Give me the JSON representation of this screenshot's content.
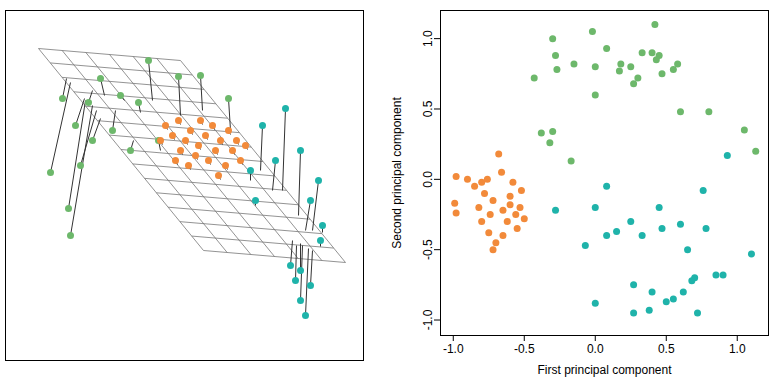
{
  "chart_data": [
    {
      "type": "scatter",
      "tick_labels": false,
      "xlim": [
        5,
        363
      ],
      "ylim": [
        10,
        360
      ],
      "plane": [
        [
          38,
          48
        ],
        [
          180,
          60
        ],
        [
          345,
          262
        ],
        [
          203,
          250
        ]
      ],
      "series": [
        {
          "color": "#6db86b",
          "x": [
            148,
            178,
            100,
            62,
            88,
            50,
            68,
            70,
            112,
            130,
            138,
            158,
            200,
            228,
            92,
            120,
            80,
            75
          ],
          "y": [
            60,
            76,
            78,
            98,
            102,
            172,
            208,
            235,
            130,
            150,
            102,
            140,
            75,
            98,
            140,
            95,
            165,
            125
          ],
          "proj_x": [
            152,
            180,
            104,
            66,
            92,
            70,
            85,
            92,
            115,
            133,
            140,
            160,
            202,
            230,
            100,
            124,
            96,
            84
          ],
          "proj_y": [
            100,
            115,
            95,
            78,
            90,
            82,
            100,
            105,
            110,
            140,
            112,
            150,
            110,
            130,
            118,
            100,
            110,
            98
          ]
        },
        {
          "color": "#f28a3a",
          "x": [
            165,
            172,
            178,
            180,
            185,
            190,
            195,
            198,
            205,
            208,
            212,
            215,
            220,
            225,
            228,
            232,
            236,
            240,
            188,
            175,
            245,
            200,
            218,
            160
          ],
          "y": [
            125,
            135,
            120,
            150,
            140,
            130,
            155,
            145,
            135,
            160,
            125,
            150,
            140,
            165,
            130,
            150,
            140,
            160,
            165,
            160,
            145,
            120,
            175,
            140
          ],
          "proj_x": [
            167,
            174,
            180,
            182,
            187,
            192,
            197,
            200,
            207,
            210,
            214,
            217,
            222,
            227,
            230,
            234,
            238,
            242,
            190,
            177,
            247,
            202,
            220,
            162
          ],
          "proj_y": [
            129,
            139,
            124,
            154,
            144,
            134,
            159,
            149,
            139,
            164,
            129,
            154,
            144,
            169,
            134,
            154,
            144,
            164,
            169,
            164,
            149,
            124,
            179,
            144
          ]
        },
        {
          "color": "#1fb3aa",
          "x": [
            285,
            318,
            262,
            275,
            300,
            250,
            310,
            255,
            300,
            305,
            320,
            295,
            290,
            322,
            300,
            310
          ],
          "y": [
            108,
            180,
            125,
            160,
            150,
            170,
            200,
            200,
            300,
            315,
            240,
            280,
            265,
            225,
            270,
            285
          ],
          "proj_x": [
            282,
            312,
            260,
            272,
            298,
            250,
            305,
            255,
            302,
            308,
            320,
            296,
            292,
            322,
            300,
            312
          ],
          "proj_y": [
            190,
            230,
            170,
            190,
            215,
            180,
            230,
            205,
            245,
            248,
            246,
            245,
            240,
            232,
            243,
            250
          ]
        }
      ]
    },
    {
      "type": "scatter",
      "x_label": "First principal component",
      "y_label": "Second principal component",
      "xlim": [
        -1.09,
        1.22
      ],
      "ylim": [
        -1.11,
        1.2
      ],
      "xticks": [
        {
          "value": -1,
          "label": "-1.0"
        },
        {
          "value": -0.5,
          "label": "-0.5"
        },
        {
          "value": 0,
          "label": "0.0"
        },
        {
          "value": 0.5,
          "label": "0.5"
        },
        {
          "value": 1,
          "label": "1.0"
        }
      ],
      "yticks": [
        {
          "value": -1,
          "label": "-1.0"
        },
        {
          "value": -0.5,
          "label": "-0.5"
        },
        {
          "value": 0,
          "label": "0.0"
        },
        {
          "value": 0.5,
          "label": "0.5"
        },
        {
          "value": 1,
          "label": "1.0"
        }
      ],
      "series": [
        {
          "color": "#f28a3a",
          "x": [
            -0.98,
            -0.99,
            -0.98,
            -0.9,
            -0.85,
            -0.82,
            -0.8,
            -0.78,
            -0.75,
            -0.74,
            -0.72,
            -0.7,
            -0.72,
            -0.68,
            -0.66,
            -0.65,
            -0.62,
            -0.6,
            -0.58,
            -0.56,
            -0.55,
            -0.53,
            -0.52,
            -0.5,
            -0.65,
            -0.8,
            -0.76,
            -0.6
          ],
          "y": [
            0.02,
            -0.17,
            -0.24,
            0.0,
            -0.05,
            -0.2,
            -0.3,
            -0.1,
            -0.38,
            -0.25,
            -0.15,
            -0.45,
            -0.5,
            0.18,
            0.05,
            -0.22,
            -0.3,
            -0.12,
            -0.02,
            -0.25,
            -0.35,
            -0.2,
            -0.08,
            -0.28,
            -0.4,
            -0.02,
            0.0,
            -0.18
          ]
        },
        {
          "color": "#6db86b",
          "x": [
            -0.43,
            -0.38,
            -0.32,
            -0.3,
            -0.3,
            -0.28,
            -0.27,
            -0.17,
            -0.15,
            -0.02,
            0.0,
            0.0,
            0.08,
            0.17,
            0.18,
            0.25,
            0.27,
            0.3,
            0.33,
            0.4,
            0.42,
            0.45,
            0.47,
            0.55,
            0.58,
            0.6,
            0.8,
            1.05,
            1.13,
            0.43
          ],
          "y": [
            0.72,
            0.33,
            0.26,
            1.0,
            0.34,
            0.88,
            0.78,
            0.13,
            0.82,
            1.05,
            0.8,
            0.6,
            0.93,
            0.77,
            0.82,
            0.8,
            0.68,
            0.72,
            0.9,
            0.9,
            1.1,
            0.88,
            0.75,
            0.78,
            0.82,
            0.48,
            0.48,
            0.35,
            0.2,
            0.85
          ]
        },
        {
          "color": "#1fb3aa",
          "x": [
            -0.28,
            -0.07,
            0.0,
            0.0,
            0.08,
            0.08,
            0.15,
            0.25,
            0.27,
            0.27,
            0.33,
            0.38,
            0.4,
            0.45,
            0.47,
            0.5,
            0.55,
            0.6,
            0.62,
            0.65,
            0.68,
            0.7,
            0.72,
            0.76,
            0.78,
            0.85,
            0.9,
            0.93,
            1.1
          ],
          "y": [
            -0.22,
            -0.47,
            -0.2,
            -0.88,
            -0.05,
            -0.4,
            -0.37,
            -0.3,
            -0.75,
            -0.95,
            -0.4,
            -0.93,
            -0.8,
            -0.2,
            -0.35,
            -0.87,
            -0.85,
            -0.32,
            -0.8,
            -0.5,
            -0.72,
            -0.7,
            -0.95,
            -0.08,
            -0.35,
            -0.68,
            -0.68,
            0.17,
            -0.53
          ]
        }
      ]
    }
  ]
}
